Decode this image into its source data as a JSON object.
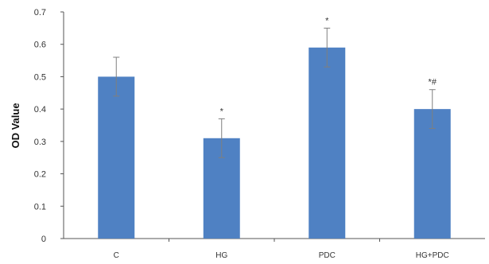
{
  "chart_data": {
    "type": "bar",
    "categories": [
      "C",
      "HG",
      "PDC",
      "HG+PDC"
    ],
    "values": [
      0.5,
      0.31,
      0.59,
      0.4
    ],
    "errors": [
      0.06,
      0.06,
      0.06,
      0.06
    ],
    "annotations": [
      "",
      "*",
      "*",
      "*#"
    ],
    "title": "",
    "xlabel": "",
    "ylabel": "OD Value",
    "ylim": [
      0,
      0.7
    ],
    "yticks": [
      0,
      0.1,
      0.2,
      0.3,
      0.4,
      0.5,
      0.6,
      0.7
    ],
    "ytick_labels": [
      "0",
      "0.1",
      "0.2",
      "0.3",
      "0.4",
      "0.5",
      "0.6",
      "0.7"
    ],
    "grid": false,
    "legend": "none",
    "bar_color": "#4f81c3",
    "error_color": "#7f7f7f"
  }
}
